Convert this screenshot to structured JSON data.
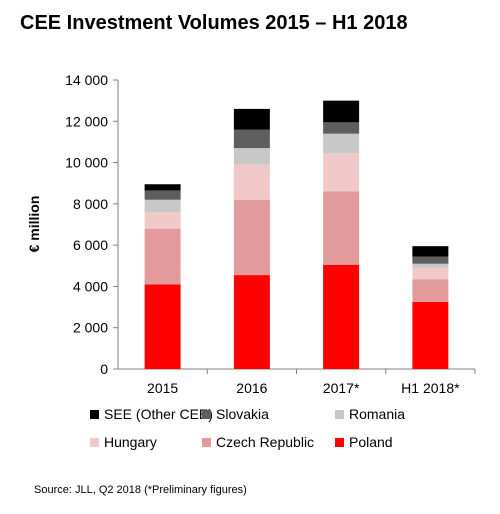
{
  "title": "CEE Investment Volumes 2015 – H1 2018",
  "source": "Source: JLL, Q2 2018 (*Preliminary figures)",
  "chart_data": {
    "type": "bar",
    "stacked": true,
    "ylabel": "€ million",
    "ylim": [
      0,
      14000
    ],
    "yticks": [
      0,
      2000,
      4000,
      6000,
      8000,
      10000,
      12000,
      14000
    ],
    "ytick_labels": [
      "0",
      "2 000",
      "4 000",
      "6 000",
      "8 000",
      "10 000",
      "12 000",
      "14 000"
    ],
    "categories": [
      "2015",
      "2016",
      "2017*",
      "H1 2018*"
    ],
    "series": [
      {
        "name": "Poland",
        "color": "#ff0000",
        "values": [
          4100,
          4550,
          5050,
          3250
        ]
      },
      {
        "name": "Czech Republic",
        "color": "#e39a9a",
        "values": [
          2700,
          3650,
          3550,
          1100
        ]
      },
      {
        "name": "Hungary",
        "color": "#f2c9c9",
        "values": [
          800,
          1700,
          1850,
          550
        ]
      },
      {
        "name": "Romania",
        "color": "#c8c8c8",
        "values": [
          600,
          800,
          950,
          200
        ]
      },
      {
        "name": "Slovakia",
        "color": "#5e5e5e",
        "values": [
          450,
          900,
          550,
          350
        ]
      },
      {
        "name": "SEE (Other CEE)",
        "color": "#000000",
        "values": [
          300,
          1000,
          1050,
          500
        ]
      }
    ],
    "legend": {
      "position": "bottom",
      "order": [
        "SEE (Other CEE)",
        "Slovakia",
        "Romania",
        "Hungary",
        "Czech Republic",
        "Poland"
      ]
    },
    "grid": false
  }
}
